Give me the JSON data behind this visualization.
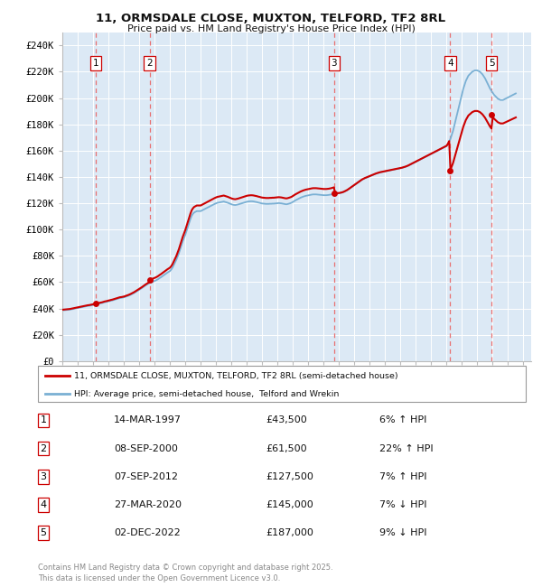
{
  "title_line1": "11, ORMSDALE CLOSE, MUXTON, TELFORD, TF2 8RL",
  "title_line2": "Price paid vs. HM Land Registry's House Price Index (HPI)",
  "ylim": [
    0,
    250000
  ],
  "yticks": [
    0,
    20000,
    40000,
    60000,
    80000,
    100000,
    120000,
    140000,
    160000,
    180000,
    200000,
    220000,
    240000
  ],
  "ytick_labels": [
    "£0",
    "£20K",
    "£40K",
    "£60K",
    "£80K",
    "£100K",
    "£120K",
    "£140K",
    "£160K",
    "£180K",
    "£200K",
    "£220K",
    "£240K"
  ],
  "xlim_start": 1995.0,
  "xlim_end": 2025.5,
  "plot_bg_color": "#dce9f5",
  "grid_color": "#ffffff",
  "red_line_color": "#cc0000",
  "blue_line_color": "#7ab0d4",
  "dashed_vline_color": "#e87070",
  "sale_dates": [
    1997.19,
    2000.68,
    2012.68,
    2020.23,
    2022.92
  ],
  "sale_prices": [
    43500,
    61500,
    127500,
    145000,
    187000
  ],
  "sale_labels": [
    "1",
    "2",
    "3",
    "4",
    "5"
  ],
  "legend_line1": "11, ORMSDALE CLOSE, MUXTON, TELFORD, TF2 8RL (semi-detached house)",
  "legend_line2": "HPI: Average price, semi-detached house,  Telford and Wrekin",
  "table_rows": [
    [
      "1",
      "14-MAR-1997",
      "£43,500",
      "6% ↑ HPI"
    ],
    [
      "2",
      "08-SEP-2000",
      "£61,500",
      "22% ↑ HPI"
    ],
    [
      "3",
      "07-SEP-2012",
      "£127,500",
      "7% ↑ HPI"
    ],
    [
      "4",
      "27-MAR-2020",
      "£145,000",
      "7% ↓ HPI"
    ],
    [
      "5",
      "02-DEC-2022",
      "£187,000",
      "9% ↓ HPI"
    ]
  ],
  "footer": "Contains HM Land Registry data © Crown copyright and database right 2025.\nThis data is licensed under the Open Government Licence v3.0.",
  "hpi_years": [
    1995.0,
    1995.083,
    1995.167,
    1995.25,
    1995.333,
    1995.417,
    1995.5,
    1995.583,
    1995.667,
    1995.75,
    1995.833,
    1995.917,
    1996.0,
    1996.083,
    1996.167,
    1996.25,
    1996.333,
    1996.417,
    1996.5,
    1996.583,
    1996.667,
    1996.75,
    1996.833,
    1996.917,
    1997.0,
    1997.083,
    1997.167,
    1997.25,
    1997.333,
    1997.417,
    1997.5,
    1997.583,
    1997.667,
    1997.75,
    1997.833,
    1997.917,
    1998.0,
    1998.083,
    1998.167,
    1998.25,
    1998.333,
    1998.417,
    1998.5,
    1998.583,
    1998.667,
    1998.75,
    1998.833,
    1998.917,
    1999.0,
    1999.083,
    1999.167,
    1999.25,
    1999.333,
    1999.417,
    1999.5,
    1999.583,
    1999.667,
    1999.75,
    1999.833,
    1999.917,
    2000.0,
    2000.083,
    2000.167,
    2000.25,
    2000.333,
    2000.417,
    2000.5,
    2000.583,
    2000.667,
    2000.75,
    2000.833,
    2000.917,
    2001.0,
    2001.083,
    2001.167,
    2001.25,
    2001.333,
    2001.417,
    2001.5,
    2001.583,
    2001.667,
    2001.75,
    2001.833,
    2001.917,
    2002.0,
    2002.083,
    2002.167,
    2002.25,
    2002.333,
    2002.417,
    2002.5,
    2002.583,
    2002.667,
    2002.75,
    2002.833,
    2002.917,
    2003.0,
    2003.083,
    2003.167,
    2003.25,
    2003.333,
    2003.417,
    2003.5,
    2003.583,
    2003.667,
    2003.75,
    2003.833,
    2003.917,
    2004.0,
    2004.083,
    2004.167,
    2004.25,
    2004.333,
    2004.417,
    2004.5,
    2004.583,
    2004.667,
    2004.75,
    2004.833,
    2004.917,
    2005.0,
    2005.083,
    2005.167,
    2005.25,
    2005.333,
    2005.417,
    2005.5,
    2005.583,
    2005.667,
    2005.75,
    2005.833,
    2005.917,
    2006.0,
    2006.083,
    2006.167,
    2006.25,
    2006.333,
    2006.417,
    2006.5,
    2006.583,
    2006.667,
    2006.75,
    2006.833,
    2006.917,
    2007.0,
    2007.083,
    2007.167,
    2007.25,
    2007.333,
    2007.417,
    2007.5,
    2007.583,
    2007.667,
    2007.75,
    2007.833,
    2007.917,
    2008.0,
    2008.083,
    2008.167,
    2008.25,
    2008.333,
    2008.417,
    2008.5,
    2008.583,
    2008.667,
    2008.75,
    2008.833,
    2008.917,
    2009.0,
    2009.083,
    2009.167,
    2009.25,
    2009.333,
    2009.417,
    2009.5,
    2009.583,
    2009.667,
    2009.75,
    2009.833,
    2009.917,
    2010.0,
    2010.083,
    2010.167,
    2010.25,
    2010.333,
    2010.417,
    2010.5,
    2010.583,
    2010.667,
    2010.75,
    2010.833,
    2010.917,
    2011.0,
    2011.083,
    2011.167,
    2011.25,
    2011.333,
    2011.417,
    2011.5,
    2011.583,
    2011.667,
    2011.75,
    2011.833,
    2011.917,
    2012.0,
    2012.083,
    2012.167,
    2012.25,
    2012.333,
    2012.417,
    2012.5,
    2012.583,
    2012.667,
    2012.75,
    2012.833,
    2012.917,
    2013.0,
    2013.083,
    2013.167,
    2013.25,
    2013.333,
    2013.417,
    2013.5,
    2013.583,
    2013.667,
    2013.75,
    2013.833,
    2013.917,
    2014.0,
    2014.083,
    2014.167,
    2014.25,
    2014.333,
    2014.417,
    2014.5,
    2014.583,
    2014.667,
    2014.75,
    2014.833,
    2014.917,
    2015.0,
    2015.083,
    2015.167,
    2015.25,
    2015.333,
    2015.417,
    2015.5,
    2015.583,
    2015.667,
    2015.75,
    2015.833,
    2015.917,
    2016.0,
    2016.083,
    2016.167,
    2016.25,
    2016.333,
    2016.417,
    2016.5,
    2016.583,
    2016.667,
    2016.75,
    2016.833,
    2016.917,
    2017.0,
    2017.083,
    2017.167,
    2017.25,
    2017.333,
    2017.417,
    2017.5,
    2017.583,
    2017.667,
    2017.75,
    2017.833,
    2017.917,
    2018.0,
    2018.083,
    2018.167,
    2018.25,
    2018.333,
    2018.417,
    2018.5,
    2018.583,
    2018.667,
    2018.75,
    2018.833,
    2018.917,
    2019.0,
    2019.083,
    2019.167,
    2019.25,
    2019.333,
    2019.417,
    2019.5,
    2019.583,
    2019.667,
    2019.75,
    2019.833,
    2019.917,
    2020.0,
    2020.083,
    2020.167,
    2020.25,
    2020.333,
    2020.417,
    2020.5,
    2020.583,
    2020.667,
    2020.75,
    2020.833,
    2020.917,
    2021.0,
    2021.083,
    2021.167,
    2021.25,
    2021.333,
    2021.417,
    2021.5,
    2021.583,
    2021.667,
    2021.75,
    2021.833,
    2021.917,
    2022.0,
    2022.083,
    2022.167,
    2022.25,
    2022.333,
    2022.417,
    2022.5,
    2022.583,
    2022.667,
    2022.75,
    2022.833,
    2022.917,
    2023.0,
    2023.083,
    2023.167,
    2023.25,
    2023.333,
    2023.417,
    2023.5,
    2023.583,
    2023.667,
    2023.75,
    2023.833,
    2023.917,
    2024.0,
    2024.083,
    2024.167,
    2024.25,
    2024.333,
    2024.417,
    2024.5
  ],
  "hpi_values": [
    38500,
    38600,
    38700,
    38800,
    38900,
    39000,
    39100,
    39300,
    39500,
    39700,
    39900,
    40100,
    40300,
    40500,
    40700,
    40900,
    41100,
    41300,
    41500,
    41700,
    41900,
    42000,
    42200,
    42400,
    42600,
    42700,
    42900,
    43100,
    43400,
    43700,
    43900,
    44100,
    44400,
    44700,
    44900,
    45100,
    45400,
    45600,
    45900,
    46100,
    46400,
    46700,
    47000,
    47300,
    47600,
    47900,
    48000,
    48200,
    48400,
    48700,
    49100,
    49400,
    49800,
    50200,
    50700,
    51200,
    51700,
    52300,
    52900,
    53500,
    54100,
    54700,
    55400,
    56100,
    56800,
    57500,
    58100,
    58700,
    59200,
    59700,
    60100,
    60500,
    60900,
    61300,
    61800,
    62400,
    63100,
    63700,
    64400,
    65100,
    65900,
    66600,
    67200,
    67800,
    68400,
    69500,
    71000,
    73000,
    75000,
    77000,
    79500,
    82000,
    85000,
    88000,
    91000,
    93500,
    96000,
    99000,
    102000,
    105000,
    108000,
    110500,
    112000,
    113000,
    113500,
    114000,
    114000,
    114000,
    114000,
    114500,
    115000,
    115500,
    116000,
    116500,
    117000,
    117500,
    118000,
    118500,
    119000,
    119500,
    119900,
    120300,
    120500,
    120700,
    120900,
    121100,
    121300,
    121000,
    120700,
    120400,
    120000,
    119600,
    119200,
    118900,
    118700,
    118600,
    118800,
    119000,
    119300,
    119600,
    119900,
    120200,
    120500,
    120800,
    121100,
    121300,
    121400,
    121500,
    121500,
    121400,
    121200,
    121000,
    120800,
    120500,
    120300,
    120000,
    119800,
    119700,
    119600,
    119500,
    119500,
    119500,
    119600,
    119600,
    119700,
    119700,
    119800,
    119900,
    120000,
    120100,
    120000,
    119900,
    119700,
    119500,
    119300,
    119200,
    119400,
    119700,
    120000,
    120400,
    121000,
    121600,
    122200,
    122700,
    123200,
    123700,
    124200,
    124600,
    125000,
    125300,
    125600,
    125800,
    126000,
    126200,
    126400,
    126600,
    126700,
    126700,
    126700,
    126600,
    126500,
    126400,
    126300,
    126200,
    126100,
    126100,
    126100,
    126200,
    126300,
    126500,
    126700,
    127000,
    127300,
    127500,
    127500,
    127500,
    127600,
    127800,
    128000,
    128300,
    128700,
    129200,
    129700,
    130300,
    131000,
    131700,
    132400,
    133100,
    133800,
    134500,
    135200,
    135900,
    136600,
    137300,
    137900,
    138400,
    138900,
    139300,
    139700,
    140100,
    140500,
    140900,
    141300,
    141700,
    142100,
    142500,
    142800,
    143100,
    143400,
    143600,
    143800,
    144000,
    144200,
    144400,
    144600,
    144800,
    145000,
    145200,
    145400,
    145600,
    145800,
    146000,
    146200,
    146400,
    146600,
    146800,
    147100,
    147400,
    147700,
    148100,
    148500,
    149000,
    149500,
    150000,
    150500,
    151000,
    151500,
    152000,
    152500,
    153000,
    153500,
    154000,
    154500,
    155000,
    155500,
    156000,
    156500,
    157000,
    157500,
    158000,
    158500,
    159000,
    159500,
    160000,
    160500,
    161000,
    161500,
    162000,
    162500,
    163000,
    163500,
    165000,
    167000,
    169000,
    172000,
    175000,
    179000,
    183000,
    187000,
    191000,
    195000,
    199000,
    203000,
    207000,
    210000,
    213000,
    215000,
    217000,
    218000,
    219000,
    220000,
    220500,
    221000,
    221000,
    221000,
    220500,
    220000,
    219000,
    218000,
    216500,
    215000,
    213000,
    211000,
    209000,
    207000,
    205500,
    204000,
    202500,
    201500,
    200500,
    199500,
    199000,
    198500,
    198500,
    198500,
    199000,
    199500,
    200000,
    200500,
    201000,
    201500,
    202000,
    202500,
    203000,
    203500
  ]
}
